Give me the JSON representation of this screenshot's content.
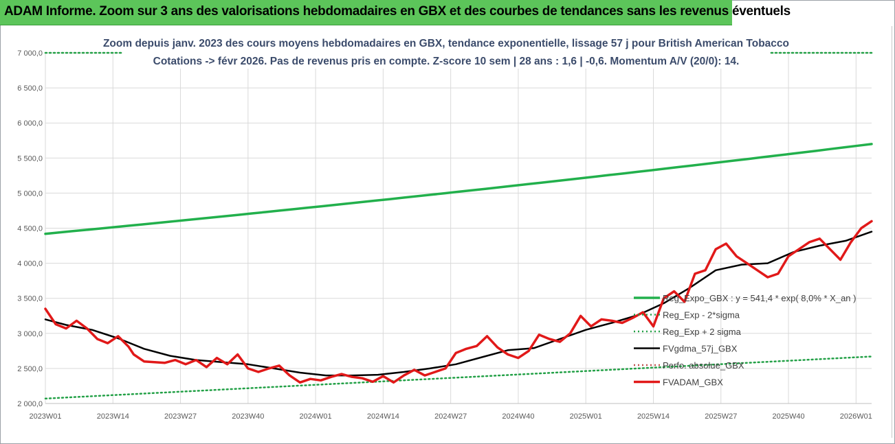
{
  "header": {
    "title": "ADAM Informe. Zoom sur 3 ans des valorisations hebdomadaires en GBX et des courbes de tendances sans les revenus éventuels"
  },
  "chart_data": {
    "type": "line",
    "title_line1": "Zoom depuis janv. 2023 des cours moyens hebdomadaires en GBX, tendance exponentielle, lissage 57 j pour British American Tobacco",
    "title_line2": "Cotations -> févr 2026.  Pas de revenus pris en compte. Z-score 10 sem | 28 ans : 1,6 | -0,6. Momentum A/V (20/0): 14.",
    "ylim": [
      2000,
      7000
    ],
    "yticks": [
      "2 000,0",
      "2 500,0",
      "3 000,0",
      "3 500,0",
      "4 000,0",
      "4 500,0",
      "5 000,0",
      "5 500,0",
      "6 000,0",
      "6 500,0",
      "7 000,0"
    ],
    "xtick_labels": [
      "2023W01",
      "2023W14",
      "2023W27",
      "2023W40",
      "2024W01",
      "2024W14",
      "2024W27",
      "2024W40",
      "2025W01",
      "2025W14",
      "2025W27",
      "2025W40",
      "2026W01"
    ],
    "grid": true,
    "legend_position": "bottom-right",
    "series": [
      {
        "name": "Reg_Expo_GBX : y = 541,4 * exp( 8,0% *  X_an )",
        "color": "#22b04c",
        "style": "solid-thick",
        "x": [
          1,
          160
        ],
        "values": [
          4420,
          5700
        ]
      },
      {
        "name": "Reg_Exp - 2*sigma",
        "color": "#22a046",
        "style": "dotted",
        "x": [
          1,
          160
        ],
        "values": [
          2070,
          2670
        ]
      },
      {
        "name": "Reg_Exp + 2 sigma",
        "color": "#22a046",
        "style": "dotted",
        "x": [
          1,
          160
        ],
        "values": [
          7000,
          7000
        ]
      },
      {
        "name": "FVgdma_57j_GBX",
        "color": "#000000",
        "style": "solid",
        "x": [
          1,
          5,
          10,
          15,
          20,
          25,
          30,
          35,
          40,
          45,
          50,
          55,
          60,
          65,
          70,
          75,
          80,
          85,
          90,
          95,
          100,
          105,
          110,
          115,
          120,
          125,
          130,
          135,
          140,
          145,
          150,
          155,
          160
        ],
        "values": [
          3200,
          3120,
          3050,
          2930,
          2780,
          2680,
          2620,
          2590,
          2560,
          2500,
          2440,
          2400,
          2400,
          2410,
          2450,
          2500,
          2560,
          2660,
          2760,
          2790,
          2920,
          3050,
          3150,
          3260,
          3430,
          3650,
          3900,
          3980,
          4000,
          4160,
          4250,
          4320,
          4450
        ]
      },
      {
        "name": "Perfo. absolue_GBX",
        "color": "#c0504d",
        "style": "dotted",
        "x": [],
        "values": []
      },
      {
        "name": "FVADAM_GBX",
        "color": "#e11919",
        "style": "solid-thick",
        "x": [
          1,
          3,
          5,
          7,
          9,
          11,
          13,
          15,
          17,
          18,
          20,
          22,
          24,
          26,
          28,
          30,
          32,
          34,
          36,
          38,
          40,
          42,
          44,
          46,
          48,
          50,
          52,
          54,
          56,
          58,
          60,
          62,
          64,
          66,
          68,
          70,
          72,
          74,
          76,
          78,
          80,
          82,
          84,
          86,
          88,
          90,
          92,
          94,
          96,
          98,
          100,
          102,
          104,
          106,
          108,
          110,
          112,
          114,
          116,
          118,
          120,
          122,
          124,
          126,
          128,
          130,
          132,
          134,
          136,
          138,
          140,
          142,
          144,
          146,
          148,
          150,
          152,
          154,
          156,
          158,
          160
        ],
        "values": [
          3350,
          3130,
          3070,
          3180,
          3070,
          2920,
          2860,
          2960,
          2810,
          2700,
          2600,
          2590,
          2580,
          2620,
          2560,
          2620,
          2520,
          2650,
          2560,
          2700,
          2500,
          2450,
          2500,
          2540,
          2400,
          2300,
          2350,
          2330,
          2380,
          2420,
          2380,
          2360,
          2310,
          2390,
          2300,
          2400,
          2480,
          2400,
          2450,
          2500,
          2720,
          2780,
          2820,
          2960,
          2800,
          2700,
          2650,
          2750,
          2980,
          2920,
          2880,
          3000,
          3250,
          3100,
          3200,
          3180,
          3150,
          3220,
          3300,
          3100,
          3500,
          3600,
          3450,
          3850,
          3900,
          4200,
          4280,
          4100,
          4000,
          3900,
          3800,
          3850,
          4100,
          4200,
          4300,
          4350,
          4200,
          4050,
          4300,
          4500,
          4600
        ]
      }
    ]
  }
}
